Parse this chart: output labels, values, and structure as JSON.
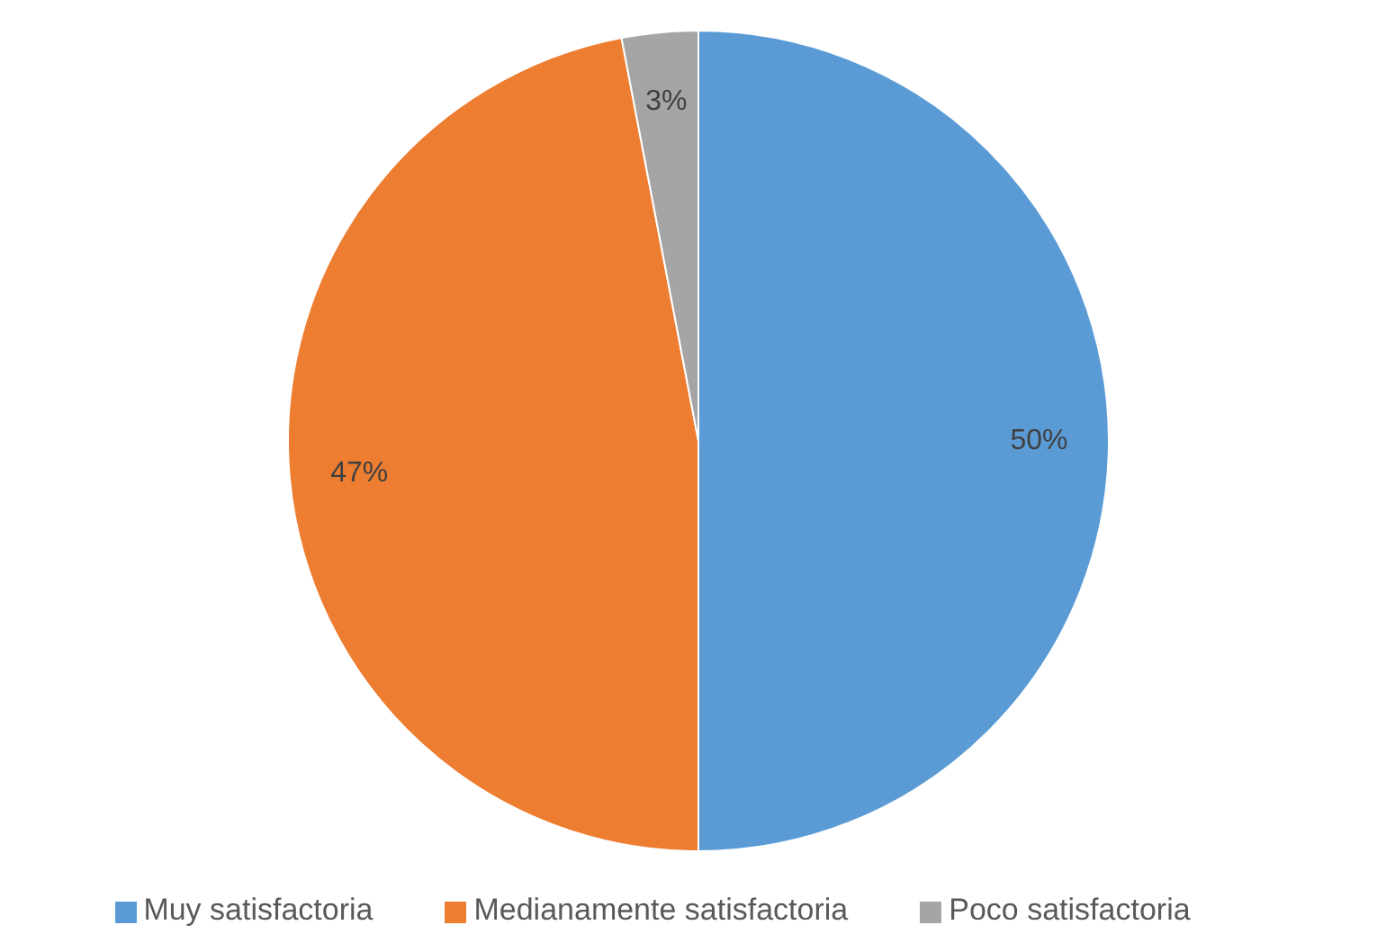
{
  "chart_data": {
    "type": "pie",
    "categories": [
      "Muy satisfactoria",
      "Medianamente satisfactoria",
      "Poco satisfactoria"
    ],
    "values": [
      50,
      47,
      3
    ],
    "colors": [
      "#5b9bd5",
      "#ed7d31",
      "#a5a5a5"
    ],
    "value_labels": [
      "50%",
      "47%",
      "3%"
    ],
    "legend": "bottom"
  }
}
